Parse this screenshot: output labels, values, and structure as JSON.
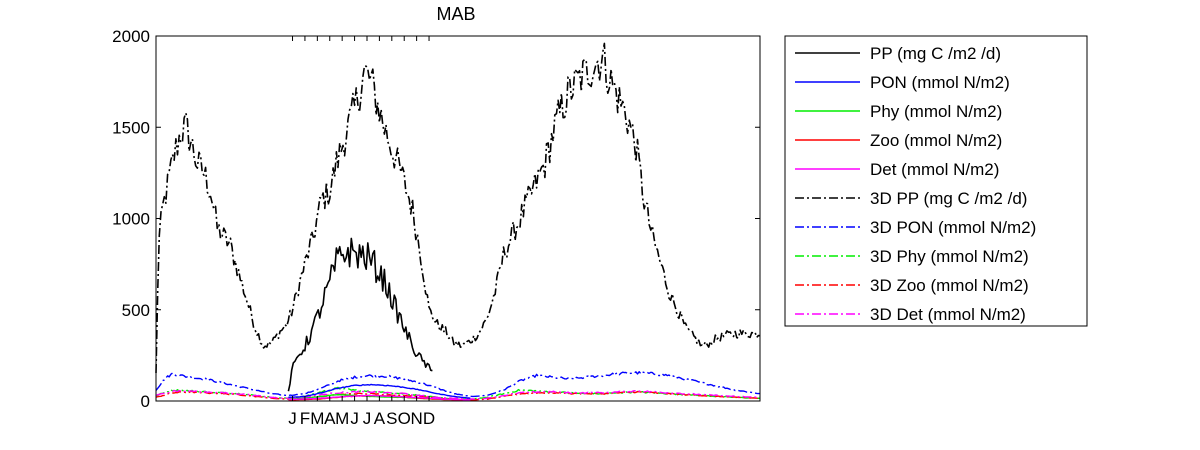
{
  "chart_data": {
    "type": "line",
    "title": "MAB",
    "xlabel": "",
    "ylabel": "",
    "xlim": [
      0,
      730
    ],
    "ylim": [
      0,
      2000
    ],
    "yticks": [
      0,
      500,
      1000,
      1500,
      2000
    ],
    "month_ticks": {
      "positions": [
        165,
        180,
        195,
        210,
        225,
        240,
        255,
        270,
        285,
        300,
        315,
        330
      ],
      "labels": [
        "J",
        "F",
        "M",
        "A",
        "M",
        "J",
        "J",
        "A",
        "S",
        "O",
        "N",
        "D"
      ]
    },
    "legend_position": "outside-right",
    "grid": false,
    "series": [
      {
        "name": "PP (mg C /m2 /d)",
        "color": "#000000",
        "style": "solid",
        "noise": 0.11,
        "x": [
          160,
          165,
          172,
          180,
          190,
          200,
          210,
          218,
          225,
          232,
          240,
          248,
          255,
          262,
          270,
          278,
          285,
          292,
          300,
          308,
          315,
          322,
          330,
          335
        ],
        "y": [
          50,
          180,
          250,
          300,
          400,
          520,
          650,
          760,
          800,
          820,
          810,
          800,
          790,
          760,
          700,
          640,
          560,
          480,
          400,
          320,
          260,
          220,
          180,
          150
        ]
      },
      {
        "name": "PON (mmol N/m2)",
        "color": "#0000ff",
        "style": "solid",
        "noise": 0.03,
        "x": [
          160,
          180,
          200,
          220,
          240,
          260,
          280,
          300,
          320,
          340,
          360,
          380
        ],
        "y": [
          20,
          25,
          45,
          70,
          85,
          90,
          85,
          75,
          60,
          40,
          25,
          15
        ]
      },
      {
        "name": "Phy (mmol N/m2)",
        "color": "#00ee00",
        "style": "solid",
        "noise": 0.05,
        "x": [
          160,
          180,
          200,
          220,
          240,
          260,
          280,
          300,
          320,
          340,
          360,
          380
        ],
        "y": [
          10,
          15,
          25,
          35,
          30,
          25,
          22,
          20,
          15,
          10,
          8,
          5
        ]
      },
      {
        "name": "Zoo (mmol N/m2)",
        "color": "#ff0000",
        "style": "solid",
        "noise": 0.05,
        "x": [
          160,
          200,
          230,
          260,
          290,
          320,
          350,
          380
        ],
        "y": [
          5,
          12,
          25,
          30,
          25,
          15,
          8,
          5
        ]
      },
      {
        "name": "Det (mmol N/m2)",
        "color": "#ff00ff",
        "style": "solid",
        "noise": 0.05,
        "x": [
          160,
          200,
          230,
          260,
          290,
          320,
          350,
          380
        ],
        "y": [
          8,
          15,
          25,
          30,
          25,
          18,
          10,
          6
        ]
      },
      {
        "name": "3D PP (mg C /m2 /d)",
        "color": "#000000",
        "style": "dashdot",
        "noise": 0.07,
        "x": [
          0,
          3,
          8,
          15,
          22,
          30,
          36,
          42,
          50,
          58,
          66,
          74,
          82,
          90,
          100,
          110,
          120,
          130,
          140,
          150,
          158,
          165,
          172,
          180,
          190,
          200,
          210,
          218,
          225,
          232,
          240,
          246,
          252,
          260,
          268,
          276,
          284,
          292,
          300,
          310,
          320,
          330,
          340,
          350,
          360,
          370,
          380,
          390,
          400,
          410,
          420,
          430,
          440,
          450,
          460,
          470,
          476,
          482,
          490,
          500,
          510,
          520,
          530,
          540,
          550,
          560,
          570,
          580,
          590,
          600,
          610,
          620,
          630,
          640,
          650,
          660,
          670,
          680,
          690,
          700,
          710,
          720,
          730
        ],
        "y": [
          150,
          850,
          1050,
          1200,
          1350,
          1470,
          1500,
          1420,
          1300,
          1250,
          1150,
          950,
          900,
          850,
          700,
          550,
          400,
          300,
          320,
          380,
          420,
          500,
          620,
          750,
          900,
          1100,
          1150,
          1300,
          1400,
          1500,
          1600,
          1700,
          1800,
          1750,
          1620,
          1500,
          1400,
          1300,
          1200,
          1050,
          800,
          500,
          420,
          380,
          320,
          300,
          330,
          370,
          450,
          600,
          800,
          900,
          1000,
          1100,
          1200,
          1300,
          1400,
          1500,
          1600,
          1700,
          1750,
          1800,
          1850,
          1880,
          1750,
          1650,
          1550,
          1400,
          1100,
          900,
          750,
          600,
          500,
          400,
          350,
          300,
          320,
          350,
          360,
          370,
          370,
          370,
          370
        ]
      },
      {
        "name": "3D PON (mmol N/m2)",
        "color": "#0000ff",
        "style": "dashdot",
        "noise": 0.05,
        "x": [
          0,
          10,
          20,
          30,
          40,
          60,
          80,
          100,
          120,
          140,
          160,
          180,
          200,
          220,
          240,
          260,
          280,
          300,
          320,
          340,
          360,
          380,
          400,
          420,
          440,
          460,
          480,
          500,
          520,
          540,
          560,
          580,
          600,
          620,
          640,
          660,
          680,
          700,
          730
        ],
        "y": [
          60,
          120,
          150,
          140,
          130,
          120,
          100,
          80,
          60,
          40,
          30,
          40,
          70,
          110,
          130,
          140,
          135,
          120,
          100,
          70,
          40,
          25,
          30,
          60,
          110,
          140,
          130,
          120,
          130,
          140,
          150,
          155,
          150,
          140,
          120,
          100,
          80,
          60,
          40
        ]
      },
      {
        "name": "3D Phy (mmol N/m2)",
        "color": "#00ee00",
        "style": "dashdot",
        "noise": 0.08,
        "x": [
          0,
          20,
          40,
          60,
          80,
          100,
          120,
          140,
          160,
          180,
          200,
          220,
          240,
          260,
          280,
          300,
          320,
          340,
          360,
          380,
          400,
          420,
          440,
          460,
          480,
          500,
          520,
          540,
          560,
          580,
          600,
          620,
          640,
          660,
          680,
          700,
          730
        ],
        "y": [
          30,
          60,
          55,
          50,
          45,
          40,
          30,
          20,
          15,
          25,
          50,
          70,
          60,
          50,
          45,
          40,
          30,
          20,
          10,
          10,
          20,
          40,
          60,
          55,
          50,
          45,
          40,
          40,
          45,
          50,
          45,
          40,
          35,
          30,
          25,
          20,
          15
        ]
      },
      {
        "name": "3D Zoo (mmol N/m2)",
        "color": "#ff0000",
        "style": "dashdot",
        "noise": 0.08,
        "x": [
          0,
          20,
          40,
          60,
          80,
          100,
          120,
          140,
          160,
          180,
          200,
          220,
          240,
          260,
          280,
          300,
          320,
          340,
          360,
          380,
          400,
          420,
          440,
          460,
          480,
          500,
          520,
          540,
          560,
          580,
          600,
          620,
          640,
          660,
          680,
          700,
          730
        ],
        "y": [
          20,
          45,
          50,
          45,
          40,
          35,
          25,
          15,
          10,
          15,
          25,
          35,
          40,
          40,
          35,
          30,
          25,
          15,
          10,
          5,
          10,
          25,
          40,
          45,
          45,
          40,
          40,
          40,
          45,
          50,
          45,
          40,
          35,
          30,
          25,
          20,
          15
        ]
      },
      {
        "name": "3D Det (mmol N/m2)",
        "color": "#ff00ff",
        "style": "dashdot",
        "noise": 0.08,
        "x": [
          0,
          20,
          40,
          60,
          80,
          100,
          120,
          140,
          160,
          180,
          200,
          220,
          240,
          260,
          280,
          300,
          320,
          340,
          360,
          380,
          400,
          420,
          440,
          460,
          480,
          500,
          520,
          540,
          560,
          580,
          600,
          620,
          640,
          660,
          680,
          700,
          730
        ],
        "y": [
          30,
          55,
          55,
          50,
          45,
          40,
          30,
          20,
          15,
          20,
          35,
          45,
          50,
          50,
          45,
          40,
          30,
          20,
          15,
          10,
          15,
          30,
          45,
          50,
          50,
          45,
          45,
          45,
          50,
          55,
          50,
          45,
          40,
          35,
          30,
          25,
          20
        ]
      }
    ]
  }
}
